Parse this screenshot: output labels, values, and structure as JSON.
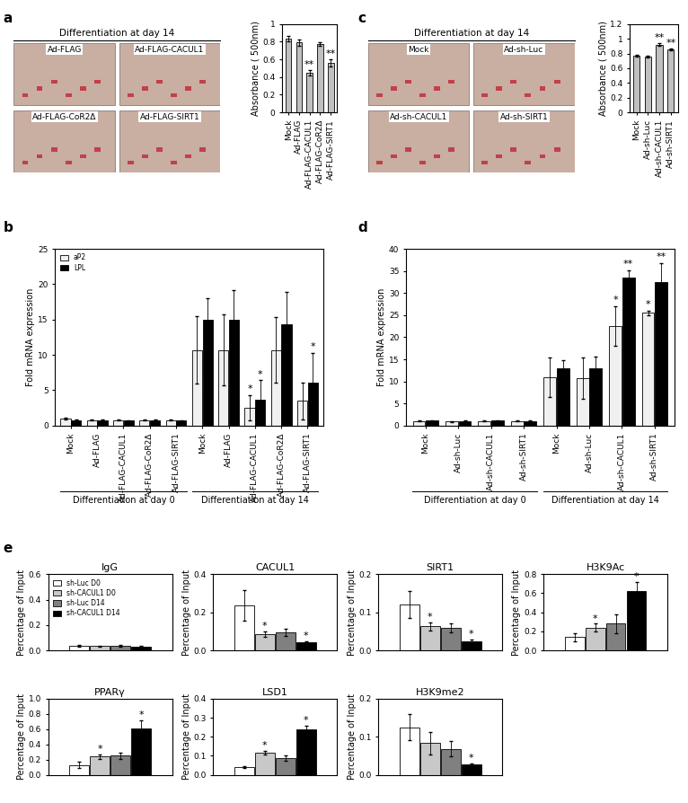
{
  "panel_letters": [
    "a",
    "b",
    "c",
    "d",
    "e"
  ],
  "image_panels": [
    {
      "title": "Differentiation at day 14",
      "labels": [
        "Ad-FLAG",
        "Ad-FLAG-CACUL1",
        "Ad-FLAG-CoR2Δ",
        "Ad-FLAG-SIRT1"
      ]
    },
    {
      "title": "Differentiation at day 14",
      "labels": [
        "Mock",
        "Ad-sh-Luc",
        "Ad-sh-CACUL1",
        "Ad-sh-SIRT1"
      ]
    }
  ],
  "chart_data": [
    {
      "type": "bar",
      "y_label": "Absorbance ( 500nm)",
      "categories": [
        "Mock",
        "Ad-FLAG",
        "Ad-FLAG-CACUL1",
        "Ad-FLAG-CoR2Δ",
        "Ad-FLAG-SIRT1"
      ],
      "series": [
        {
          "color": "#c0c0c0",
          "values": [
            0.84,
            0.79,
            0.45,
            0.77,
            0.56
          ],
          "errors": [
            0.03,
            0.04,
            0.03,
            0.02,
            0.04
          ]
        }
      ],
      "ylim": [
        0,
        1
      ],
      "yticks": [
        0,
        0.2,
        0.4,
        0.6,
        0.8,
        1
      ],
      "annotations": [
        {
          "text": "**",
          "category": 2
        },
        {
          "text": "**",
          "category": 4
        }
      ]
    },
    {
      "type": "bar",
      "y_label": "Fold mRNA expression",
      "categories": [
        "Mock",
        "Ad-FLAG",
        "Ad-FLAG-CACUL1",
        "Ad-FLAG-CoR2Δ",
        "Ad-FLAG-SIRT1",
        "Mock",
        "Ad-FLAG",
        "Ad-FLAG-CACUL1",
        "Ad-FLAG-CoR2Δ",
        "Ad-FLAG-SIRT1"
      ],
      "groups": [
        {
          "name": "Differentiation at day 0",
          "size": 5
        },
        {
          "name": "Differentiation at day 14",
          "size": 5
        }
      ],
      "series": [
        {
          "name": "aP2",
          "color": "#f0f0f0",
          "values": [
            1.0,
            0.8,
            0.8,
            0.8,
            0.8,
            10.7,
            10.7,
            2.5,
            10.7,
            3.5
          ],
          "errors": [
            0.1,
            0.1,
            0.1,
            0.1,
            0.1,
            4.8,
            5.0,
            1.8,
            4.6,
            2.6
          ]
        },
        {
          "name": "LPL",
          "color": "#000000",
          "values": [
            0.8,
            0.8,
            0.7,
            0.8,
            0.7,
            15.0,
            15.0,
            3.7,
            14.3,
            6.1
          ],
          "errors": [
            0.1,
            0.1,
            0.1,
            0.1,
            0.1,
            3.0,
            4.2,
            2.7,
            4.6,
            4.2
          ]
        }
      ],
      "ylim": [
        0,
        25
      ],
      "yticks": [
        0,
        5,
        10,
        15,
        20,
        25
      ],
      "legend": "upper left",
      "annotations": [
        {
          "text": "*",
          "category": 7,
          "series": 0
        },
        {
          "text": "*",
          "category": 7,
          "series": 1
        },
        {
          "text": "*",
          "category": 9,
          "series": 1
        }
      ]
    },
    {
      "type": "bar",
      "y_label": "Absorbance ( 500nm)",
      "categories": [
        "Mock",
        "Ad-sh-Luc",
        "Ad-sh-CACUL1",
        "Ad-sh-SIRT1"
      ],
      "series": [
        {
          "color": "#c0c0c0",
          "values": [
            0.77,
            0.76,
            0.92,
            0.86
          ],
          "errors": [
            0.01,
            0.01,
            0.02,
            0.01
          ]
        }
      ],
      "ylim": [
        0,
        1.2
      ],
      "yticks": [
        0,
        0.2,
        0.4,
        0.6,
        0.8,
        1,
        1.2
      ],
      "annotations": [
        {
          "text": "**",
          "category": 2
        },
        {
          "text": "**",
          "category": 3
        }
      ]
    },
    {
      "type": "bar",
      "y_label": "Fold mRNA expression",
      "categories": [
        "Mock",
        "Ad-sh-Luc",
        "Ad-sh-CACUL1",
        "Ad-sh-SIRT1",
        "Mock",
        "Ad-sh-Luc",
        "Ad-sh-CACUL1",
        "Ad-sh-SIRT1"
      ],
      "groups": [
        {
          "name": "Differentiation at day 0",
          "size": 4
        },
        {
          "name": "Differentiation at day 14",
          "size": 4
        }
      ],
      "series": [
        {
          "name": "aP2",
          "color": "#f0f0f0",
          "values": [
            1.0,
            0.9,
            1.0,
            1.0,
            11.0,
            10.8,
            22.5,
            25.5
          ],
          "errors": [
            0.1,
            0.1,
            0.1,
            0.1,
            4.5,
            4.7,
            4.5,
            0.5
          ]
        },
        {
          "name": "LPL",
          "color": "#000000",
          "values": [
            1.1,
            1.0,
            1.1,
            1.0,
            13.0,
            13.0,
            33.5,
            32.5
          ],
          "errors": [
            0.1,
            0.1,
            0.1,
            0.1,
            1.8,
            2.7,
            1.6,
            4.2
          ]
        }
      ],
      "ylim": [
        0,
        40
      ],
      "yticks": [
        0,
        5,
        10,
        15,
        20,
        25,
        30,
        35,
        40
      ],
      "annotations": [
        {
          "text": "*",
          "category": 6,
          "series": 0
        },
        {
          "text": "**",
          "category": 6,
          "series": 1
        },
        {
          "text": "*",
          "category": 7,
          "series": 0
        },
        {
          "text": "**",
          "category": 7,
          "series": 1
        }
      ]
    },
    {
      "type": "bar",
      "title": "IgG",
      "y_label": "Percentage of Input",
      "tick_labels": "y",
      "legend": "upper left",
      "categories": [
        null
      ],
      "ylim": [
        0,
        0.6
      ],
      "yticks": [
        {
          "value": 0,
          "label": "0.0"
        },
        0.2,
        0.4,
        0.6
      ],
      "series": [
        {
          "name": "sh-Luc D0",
          "color": "#ffffff",
          "values": [
            0.035
          ],
          "errors": [
            0.005
          ]
        },
        {
          "name": "sh-CACUL1 D0",
          "color": "#c8c8c8",
          "values": [
            0.033
          ],
          "errors": [
            0.005
          ]
        },
        {
          "name": "sh-Luc D14",
          "color": "#808080",
          "values": [
            0.035
          ],
          "errors": [
            0.005
          ]
        },
        {
          "name": "sh-CACUL1 D14",
          "color": "#000000",
          "values": [
            0.03
          ],
          "errors": [
            0.004
          ]
        }
      ]
    },
    {
      "type": "bar",
      "title": "CACUL1",
      "y_label": "Percentage of Input",
      "tick_labels": "y",
      "categories": [
        null
      ],
      "ylim": [
        0,
        0.4
      ],
      "yticks": [
        {
          "value": 0,
          "label": "0.0"
        },
        0.2,
        0.4
      ],
      "series": [
        {
          "name": "sh-Luc D0",
          "color": "#ffffff",
          "values": [
            0.235
          ],
          "errors": [
            0.08
          ]
        },
        {
          "name": "sh-CACUL1 D0",
          "color": "#c8c8c8",
          "values": [
            0.085
          ],
          "errors": [
            0.015
          ]
        },
        {
          "name": "sh-Luc D14",
          "color": "#808080",
          "values": [
            0.095
          ],
          "errors": [
            0.02
          ]
        },
        {
          "name": "sh-CACUL1 D14",
          "color": "#000000",
          "values": [
            0.042
          ],
          "errors": [
            0.005
          ]
        }
      ],
      "annotations": [
        {
          "text": "*",
          "category": 0,
          "series": 1
        },
        {
          "text": "*",
          "category": 0,
          "series": 3
        }
      ]
    },
    {
      "type": "bar",
      "title": "SIRT1",
      "y_label": "Percentage of Input",
      "tick_labels": "y",
      "categories": [
        null
      ],
      "ylim": [
        0,
        0.2
      ],
      "yticks": [
        {
          "value": 0,
          "label": "0.0"
        },
        0.1,
        0.2
      ],
      "series": [
        {
          "name": "sh-Luc D0",
          "color": "#ffffff",
          "values": [
            0.12
          ],
          "errors": [
            0.035
          ]
        },
        {
          "name": "sh-CACUL1 D0",
          "color": "#c8c8c8",
          "values": [
            0.063
          ],
          "errors": [
            0.01
          ]
        },
        {
          "name": "sh-Luc D14",
          "color": "#808080",
          "values": [
            0.06
          ],
          "errors": [
            0.012
          ]
        },
        {
          "name": "sh-CACUL1 D14",
          "color": "#000000",
          "values": [
            0.025
          ],
          "errors": [
            0.003
          ]
        }
      ],
      "annotations": [
        {
          "text": "*",
          "category": 0,
          "series": 1
        },
        {
          "text": "*",
          "category": 0,
          "series": 3
        }
      ]
    },
    {
      "type": "bar",
      "title": "H3K9Ac",
      "y_label": "Percentage of Input",
      "tick_labels": "y",
      "categories": [
        null
      ],
      "ylim": [
        0,
        0.8
      ],
      "yticks": [
        {
          "value": 0,
          "label": "0.0"
        },
        0.2,
        0.4,
        0.6,
        0.8
      ],
      "series": [
        {
          "name": "sh-Luc D0",
          "color": "#ffffff",
          "values": [
            0.14
          ],
          "errors": [
            0.04
          ]
        },
        {
          "name": "sh-CACUL1 D0",
          "color": "#c8c8c8",
          "values": [
            0.24
          ],
          "errors": [
            0.04
          ]
        },
        {
          "name": "sh-Luc D14",
          "color": "#808080",
          "values": [
            0.28
          ],
          "errors": [
            0.1
          ]
        },
        {
          "name": "sh-CACUL1 D14",
          "color": "#000000",
          "values": [
            0.62
          ],
          "errors": [
            0.1
          ]
        }
      ],
      "annotations": [
        {
          "text": "*",
          "category": 0,
          "series": 1
        },
        {
          "text": "*",
          "category": 0,
          "series": 3
        }
      ]
    },
    {
      "type": "bar",
      "title": "PPARγ",
      "y_label": "Percentage of Input",
      "tick_labels": "y",
      "categories": [
        null
      ],
      "ylim": [
        0,
        1.0
      ],
      "yticks": [
        {
          "value": 0,
          "label": "0.0"
        },
        0.2,
        0.4,
        0.6,
        0.8,
        {
          "value": 1.0,
          "label": "1.0"
        }
      ],
      "series": [
        {
          "name": "sh-Luc D0",
          "color": "#ffffff",
          "values": [
            0.13
          ],
          "errors": [
            0.04
          ]
        },
        {
          "name": "sh-CACUL1 D0",
          "color": "#c8c8c8",
          "values": [
            0.24
          ],
          "errors": [
            0.03
          ]
        },
        {
          "name": "sh-Luc D14",
          "color": "#808080",
          "values": [
            0.25
          ],
          "errors": [
            0.04
          ]
        },
        {
          "name": "sh-CACUL1 D14",
          "color": "#000000",
          "values": [
            0.61
          ],
          "errors": [
            0.11
          ]
        }
      ],
      "annotations": [
        {
          "text": "*",
          "category": 0,
          "series": 1
        },
        {
          "text": "*",
          "category": 0,
          "series": 3
        }
      ]
    },
    {
      "type": "bar",
      "title": "LSD1",
      "y_label": "Percentage of Input",
      "tick_labels": "y",
      "categories": [
        null
      ],
      "ylim": [
        0,
        0.4
      ],
      "yticks": [
        {
          "value": 0,
          "label": "0.0"
        },
        0.1,
        0.2,
        0.3,
        0.4
      ],
      "series": [
        {
          "name": "sh-Luc D0",
          "color": "#ffffff",
          "values": [
            0.04
          ],
          "errors": [
            0.005
          ]
        },
        {
          "name": "sh-CACUL1 D0",
          "color": "#c8c8c8",
          "values": [
            0.118
          ],
          "errors": [
            0.01
          ]
        },
        {
          "name": "sh-Luc D14",
          "color": "#808080",
          "values": [
            0.088
          ],
          "errors": [
            0.015
          ]
        },
        {
          "name": "sh-CACUL1 D14",
          "color": "#000000",
          "values": [
            0.24
          ],
          "errors": [
            0.02
          ]
        }
      ],
      "annotations": [
        {
          "text": "*",
          "category": 0,
          "series": 1
        },
        {
          "text": "*",
          "category": 0,
          "series": 3
        }
      ]
    },
    {
      "type": "bar",
      "title": "H3K9me2",
      "y_label": "Percentage of Input",
      "tick_labels": "y",
      "categories": [
        null
      ],
      "ylim": [
        0,
        0.2
      ],
      "yticks": [
        {
          "value": 0,
          "label": "0.0"
        },
        0.1,
        0.2
      ],
      "series": [
        {
          "name": "sh-Luc D0",
          "color": "#ffffff",
          "values": [
            0.125
          ],
          "errors": [
            0.035
          ]
        },
        {
          "name": "sh-CACUL1 D0",
          "color": "#c8c8c8",
          "values": [
            0.083
          ],
          "errors": [
            0.03
          ]
        },
        {
          "name": "sh-Luc D14",
          "color": "#808080",
          "values": [
            0.068
          ],
          "errors": [
            0.02
          ]
        },
        {
          "name": "sh-CACUL1 D14",
          "color": "#000000",
          "values": [
            0.027
          ],
          "errors": [
            0.003
          ]
        }
      ],
      "annotations": [
        {
          "text": "*",
          "category": 0,
          "series": 3
        }
      ]
    }
  ]
}
